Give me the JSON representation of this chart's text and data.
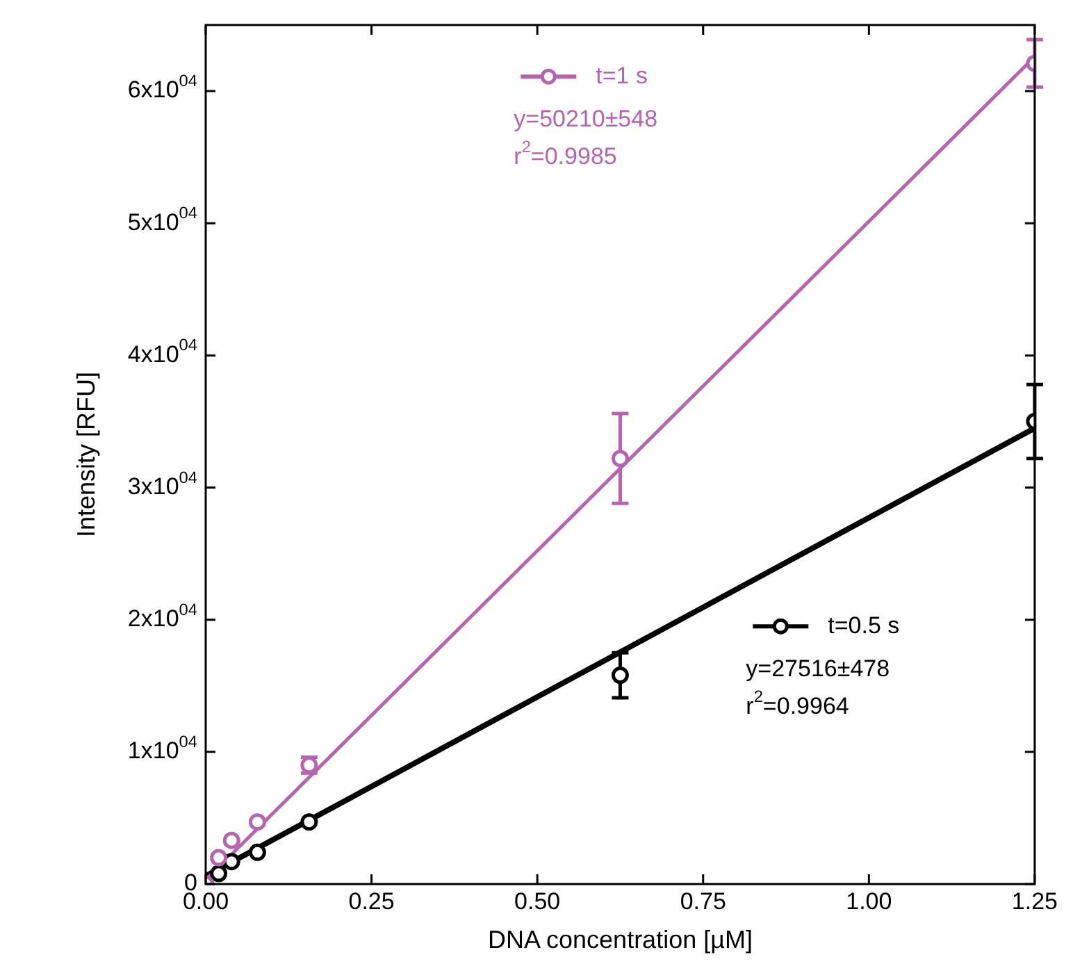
{
  "chart_data": {
    "type": "scatter",
    "xlabel": "DNA concentration [µM]",
    "ylabel": "Intensity [RFU]",
    "xlim": [
      0,
      1.25
    ],
    "ylim": [
      0,
      65000
    ],
    "xticks": [
      {
        "value": 0,
        "label": "0.00"
      },
      {
        "value": 0.25,
        "label": "0.25"
      },
      {
        "value": 0.5,
        "label": "0.50"
      },
      {
        "value": 0.75,
        "label": "0.75"
      },
      {
        "value": 1,
        "label": "1.00"
      },
      {
        "value": 1.25,
        "label": "1.25"
      }
    ],
    "yticks": [
      0,
      {
        "value": 10000,
        "label": "1x10$^{04}$"
      },
      {
        "value": 20000,
        "label": "2x10$^{04}$"
      },
      {
        "value": 30000,
        "label": "3x10$^{04}$"
      },
      {
        "value": 40000,
        "label": "4x10$^{04}$"
      },
      {
        "value": 50000,
        "label": "5x10$^{04}$"
      },
      {
        "value": 60000,
        "label": "6x10$^{04}$"
      }
    ],
    "grid": false,
    "legend": "top right",
    "series": [
      {
        "type": "line",
        "color": "#b565b0",
        "marker": "none",
        "x": [
          0,
          1.25
        ],
        "values": [
          300,
          62600
        ]
      },
      {
        "type": "line",
        "color": "#000000",
        "marker": "none",
        "x": [
          0,
          1.25
        ],
        "values": [
          600,
          34500
        ]
      },
      {
        "name": "t=1 s",
        "color": "#b565b0",
        "marker": "circle",
        "x": [
          0,
          0.0195,
          0.039,
          0.078,
          0.156,
          0.625,
          1.25
        ],
        "values": [
          0,
          2000,
          3300,
          4700,
          9000,
          32200,
          62100
        ],
        "errors": [
          null,
          null,
          null,
          null,
          600,
          3400,
          1800
        ]
      },
      {
        "name": "t=0.5 s",
        "color": "#000000",
        "marker": "circle",
        "x": [
          0.0195,
          0.039,
          0.078,
          0.156,
          0.625,
          1.25
        ],
        "values": [
          800,
          1700,
          2400,
          4700,
          15800,
          35000
        ],
        "errors": [
          null,
          null,
          null,
          null,
          1700,
          2800
        ]
      }
    ],
    "annotations": [
      "y=50210±548",
      "r$^{2}$=0.9985",
      "y=27516±478",
      "r$^{2}$=0.9964"
    ]
  }
}
